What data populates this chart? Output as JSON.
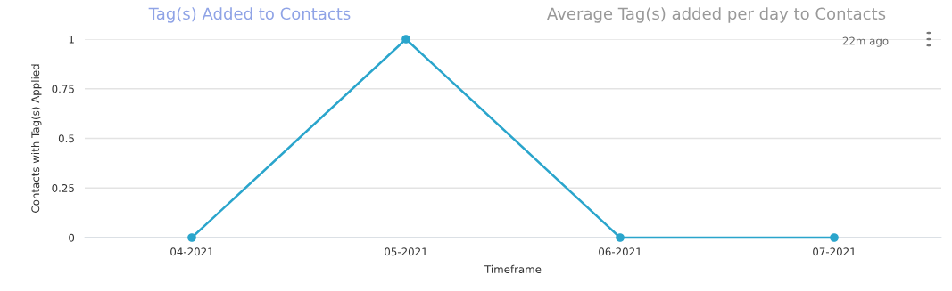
{
  "chart_data": {
    "type": "line",
    "xlabel": "Timeframe",
    "ylabel": "Contacts with Tag(s) Applied",
    "categories": [
      "04-2021",
      "05-2021",
      "06-2021",
      "07-2021"
    ],
    "series": [
      {
        "color": "#2aa5cc",
        "values": [
          0,
          1,
          0,
          0
        ]
      }
    ],
    "ylim": [
      0,
      1
    ],
    "yticks": [
      0,
      0.25,
      0.5,
      0.75,
      1
    ],
    "grid": "y",
    "marker": "circle",
    "line_style": "solid",
    "annotations": [
      "Tag(s) Added to Contacts",
      "Average Tag(s) added per day to Contacts",
      "22m ago"
    ]
  }
}
